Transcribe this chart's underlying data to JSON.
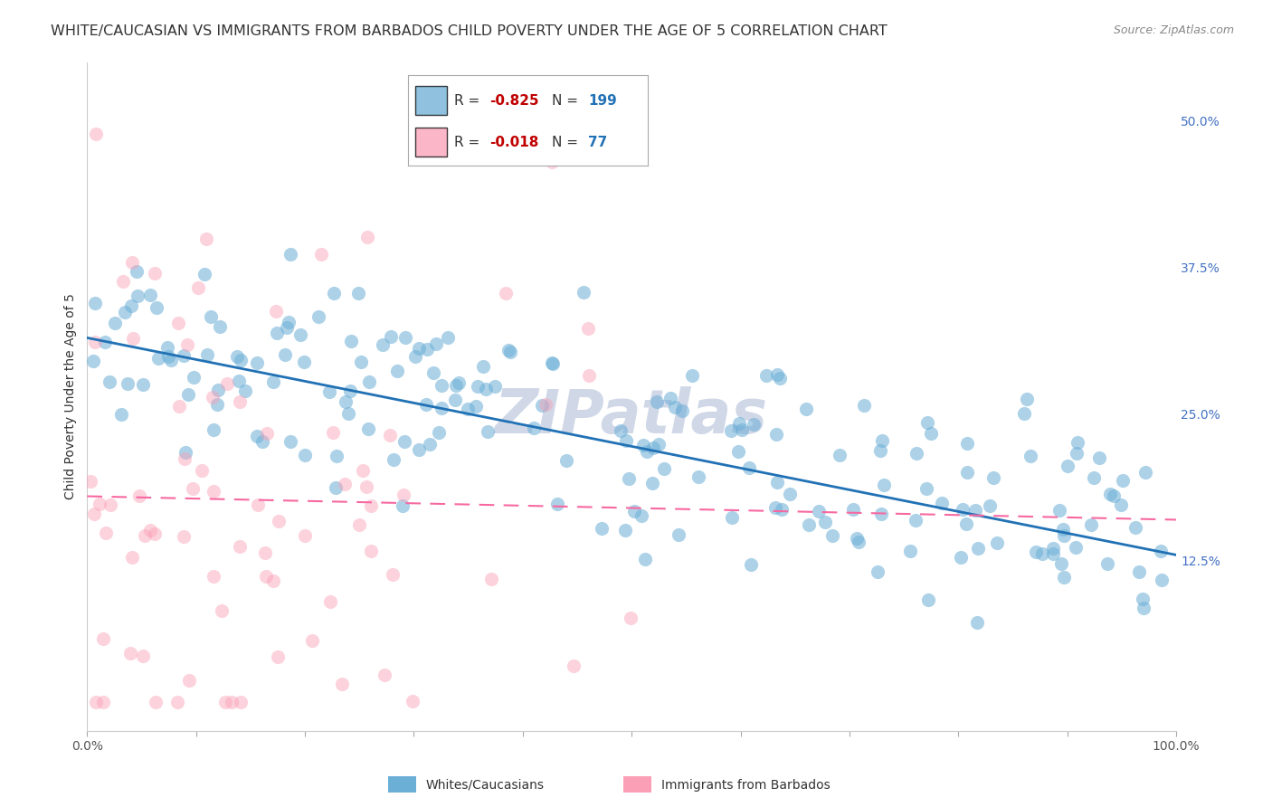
{
  "title": "WHITE/CAUCASIAN VS IMMIGRANTS FROM BARBADOS CHILD POVERTY UNDER THE AGE OF 5 CORRELATION CHART",
  "source": "Source: ZipAtlas.com",
  "ylabel": "Child Poverty Under the Age of 5",
  "blue_label": "Whites/Caucasians",
  "pink_label": "Immigrants from Barbados",
  "blue_R": -0.825,
  "blue_N": 199,
  "pink_R": -0.018,
  "pink_N": 77,
  "blue_color": "#6baed6",
  "pink_color": "#fa9fb5",
  "blue_line_color": "#2171b5",
  "pink_line_color": "#f768a1",
  "blue_scatter_alpha": 0.55,
  "pink_scatter_alpha": 0.45,
  "marker_size": 120,
  "xlim": [
    0,
    1
  ],
  "ylim": [
    -0.02,
    0.55
  ],
  "yticks": [
    0.125,
    0.25,
    0.375,
    0.5
  ],
  "ytick_labels": [
    "12.5%",
    "25.0%",
    "37.5%",
    "50.0%"
  ],
  "background_color": "#ffffff",
  "grid_color": "#cccccc",
  "title_fontsize": 11.5,
  "axis_label_fontsize": 10,
  "tick_fontsize": 10,
  "watermark_text": "ZIPatlas",
  "watermark_color": "#d0d8e8",
  "watermark_fontsize": 48,
  "blue_slope": -0.185,
  "blue_intercept": 0.315,
  "blue_noise_std": 0.045,
  "pink_slope": -0.02,
  "pink_intercept": 0.18,
  "pink_noise_std": 0.12
}
